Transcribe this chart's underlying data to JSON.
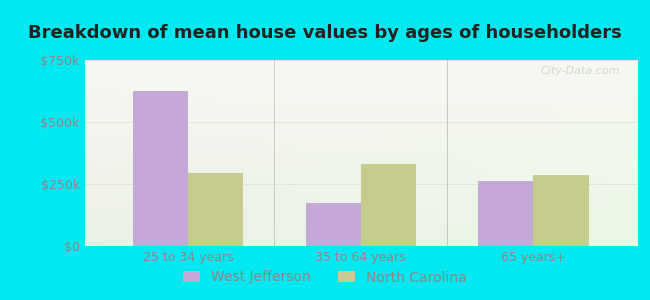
{
  "title": "Breakdown of mean house values by ages of householders",
  "categories": [
    "25 to 34 years",
    "35 to 64 years",
    "65 years+"
  ],
  "west_jefferson": [
    625000,
    175000,
    262000
  ],
  "north_carolina": [
    295000,
    330000,
    285000
  ],
  "ylim": [
    0,
    750000
  ],
  "yticks": [
    0,
    250000,
    500000,
    750000
  ],
  "ytick_labels": [
    "$0",
    "$250k",
    "$500k",
    "$750k"
  ],
  "bar_color_wj": "#c4a8d8",
  "bar_color_nc": "#c5cc8e",
  "legend_label_wj": "West Jefferson",
  "legend_label_nc": "North Carolina",
  "bg_outer": "#00e8f0",
  "title_fontsize": 13,
  "tick_fontsize": 9,
  "legend_fontsize": 10,
  "bar_width": 0.32,
  "title_color": "#222222",
  "tick_color": "#888888",
  "watermark_text": "City-Data.com"
}
